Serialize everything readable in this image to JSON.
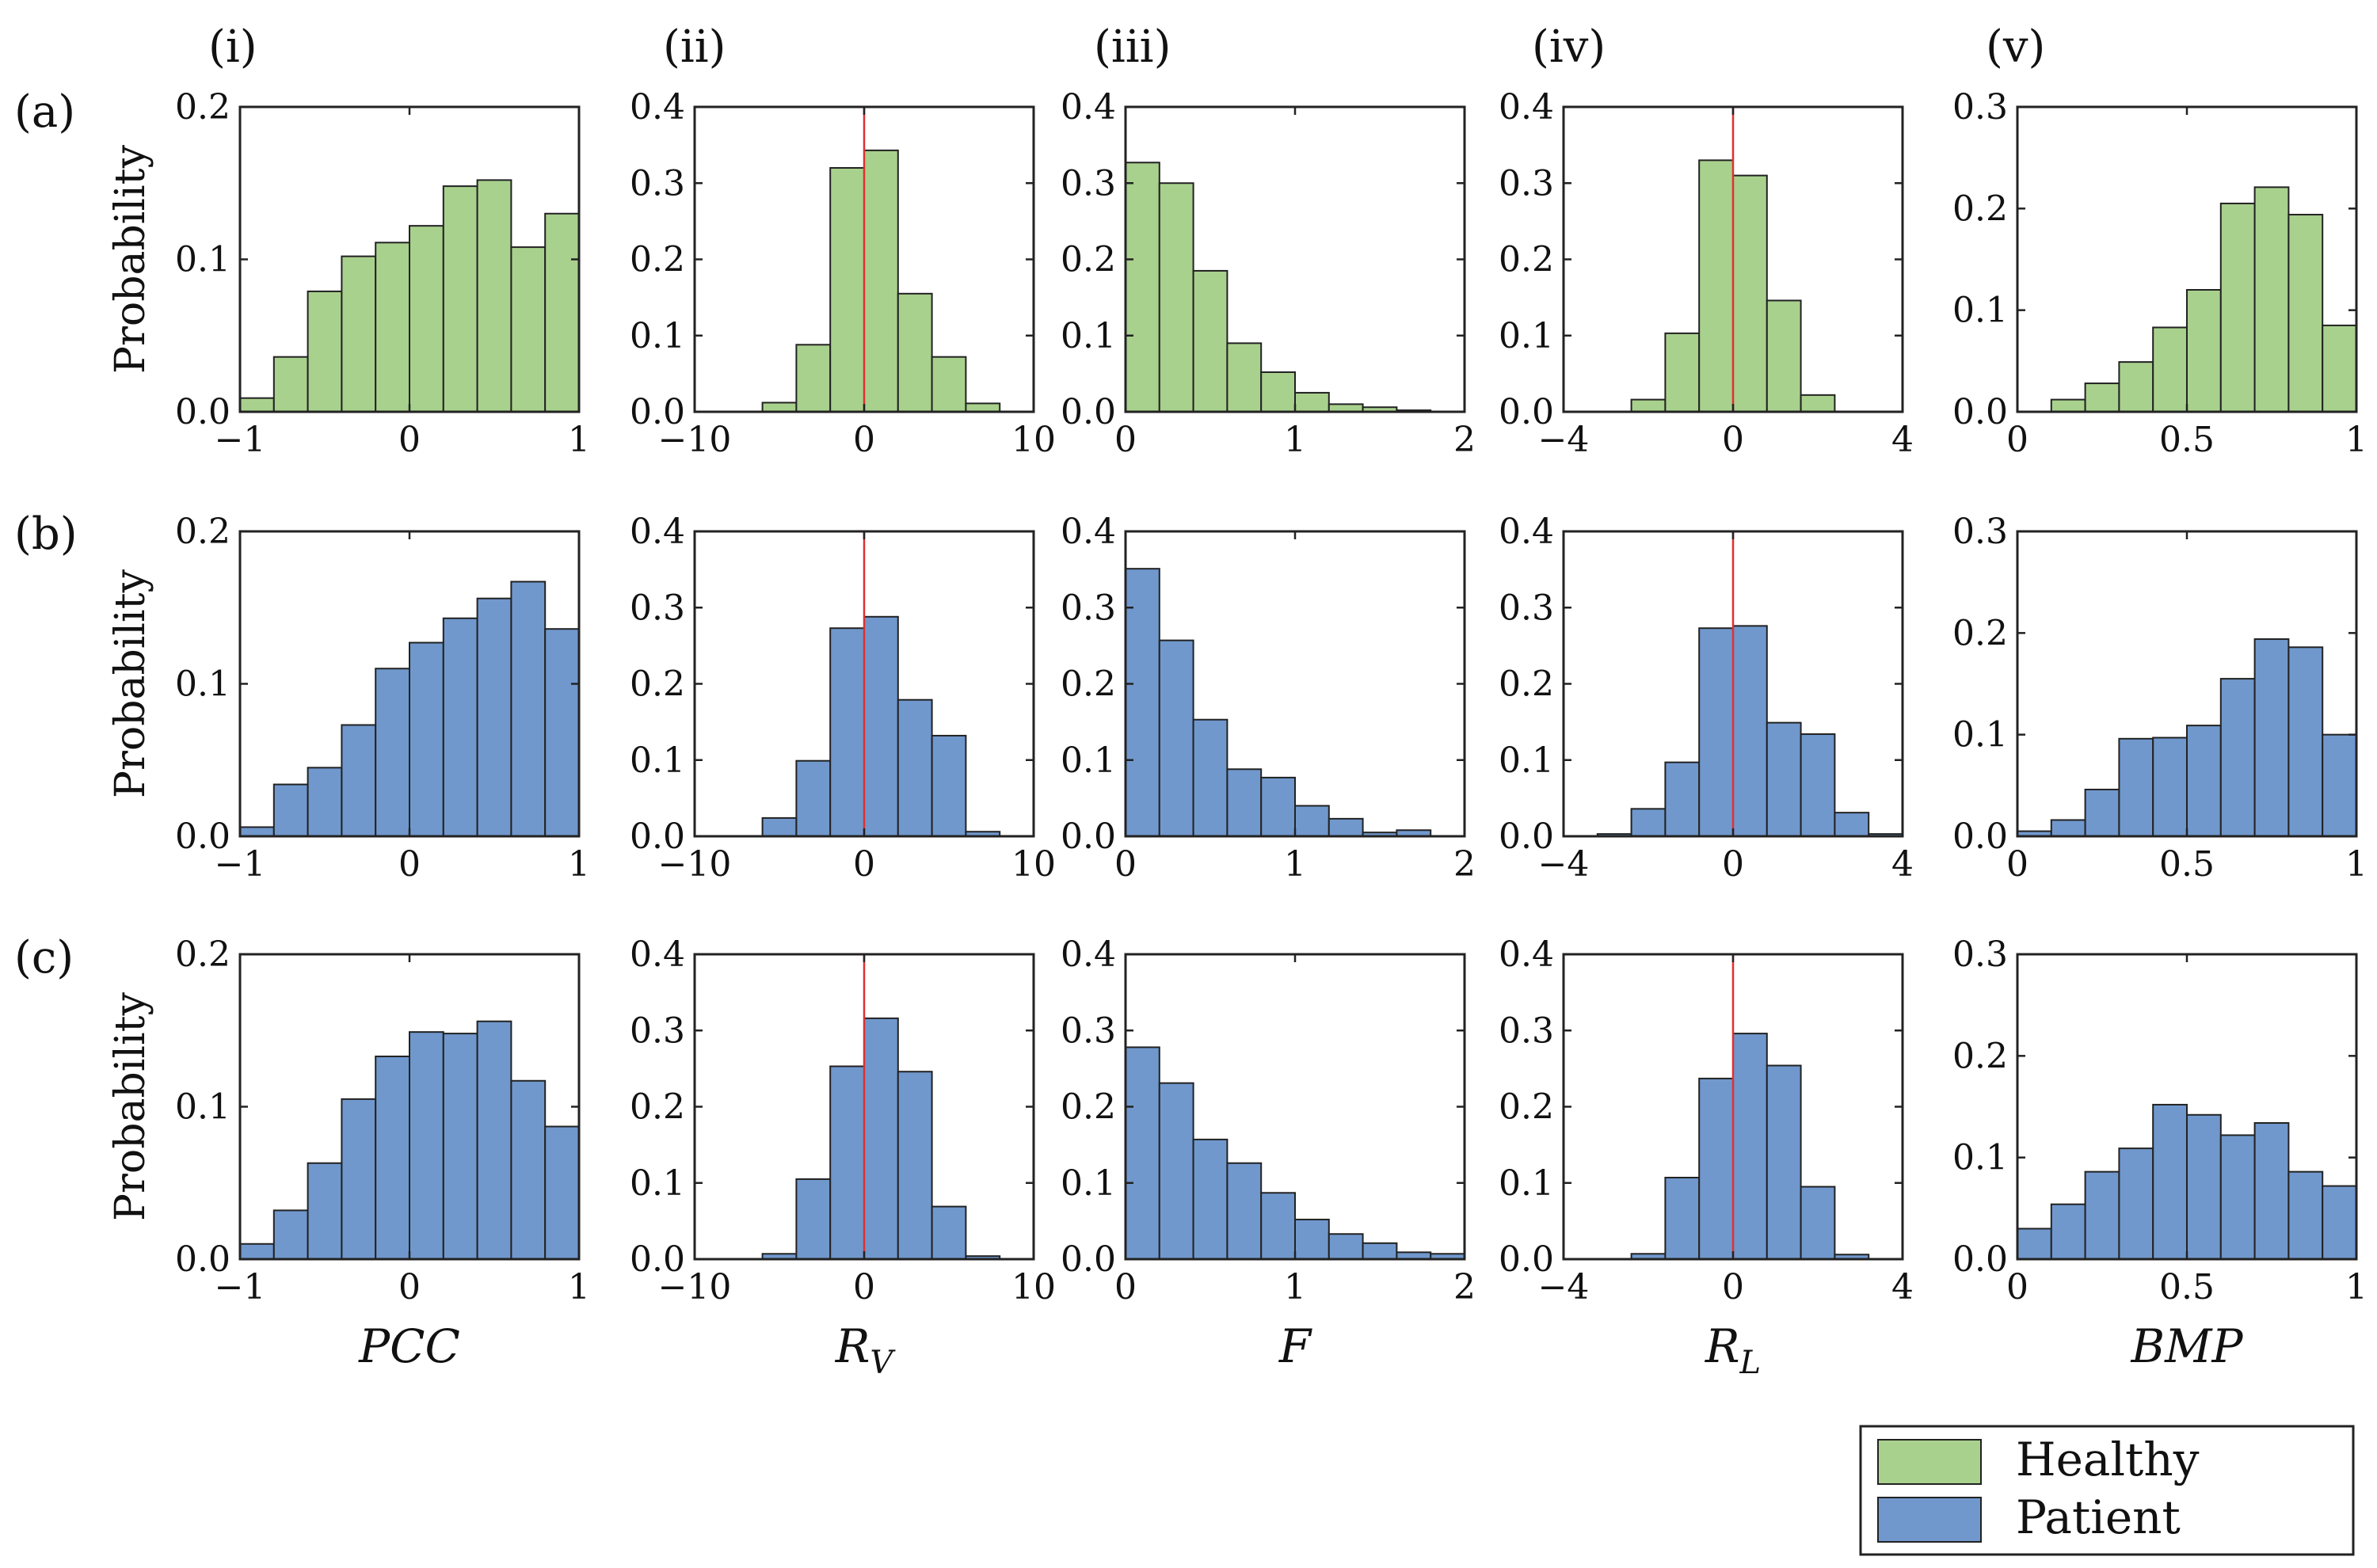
{
  "column_labels": [
    "(i)",
    "(ii)",
    "(iii)",
    "(iv)",
    "(v)"
  ],
  "row_labels": [
    "(a)",
    "(b)",
    "(c)"
  ],
  "ylabel": "Probability",
  "xlabels": [
    {
      "main": "PCC",
      "sub": ""
    },
    {
      "main": "R",
      "sub": "V"
    },
    {
      "main": "F",
      "sub": ""
    },
    {
      "main": "R",
      "sub": "L"
    },
    {
      "main": "BMP",
      "sub": ""
    }
  ],
  "legend": [
    {
      "label": "Healthy",
      "color": "#a9d18e"
    },
    {
      "label": "Patient",
      "color": "#7098cd"
    }
  ],
  "colors": {
    "healthy": "#a9d18e",
    "patient": "#7098cd",
    "edge": "#222222",
    "zero_line": "#e03030"
  },
  "chart_data": [
    {
      "type": "bar",
      "variable": "PCC",
      "xlim": [
        -1,
        1
      ],
      "ylim": [
        0,
        0.2
      ],
      "xticks": [
        "−1",
        "0",
        "1"
      ],
      "xtick_values": [
        -1,
        0,
        1
      ],
      "yticks": [
        "0.0",
        "0.1",
        "0.2"
      ],
      "ytick_values": [
        0,
        0.1,
        0.2
      ],
      "bin_edges": [
        -1,
        -0.8,
        -0.6,
        -0.4,
        -0.2,
        0,
        0.2,
        0.4,
        0.6,
        0.8,
        1
      ],
      "zero_line": false,
      "series": [
        {
          "name": "Healthy",
          "row": "(a)",
          "values": [
            0.009,
            0.036,
            0.079,
            0.102,
            0.111,
            0.122,
            0.148,
            0.152,
            0.108,
            0.13
          ]
        },
        {
          "name": "Patient",
          "row": "(b)",
          "values": [
            0.006,
            0.034,
            0.045,
            0.073,
            0.11,
            0.127,
            0.143,
            0.156,
            0.167,
            0.136
          ]
        },
        {
          "name": "Patient",
          "row": "(c)",
          "values": [
            0.01,
            0.032,
            0.063,
            0.105,
            0.133,
            0.149,
            0.148,
            0.156,
            0.117,
            0.087
          ]
        }
      ]
    },
    {
      "type": "bar",
      "variable": "R_V",
      "xlim": [
        -10,
        10
      ],
      "ylim": [
        0,
        0.4
      ],
      "xticks": [
        "−10",
        "0",
        "10"
      ],
      "xtick_values": [
        -10,
        0,
        10
      ],
      "yticks": [
        "0.0",
        "0.1",
        "0.2",
        "0.3",
        "0.4"
      ],
      "ytick_values": [
        0,
        0.1,
        0.2,
        0.3,
        0.4
      ],
      "bin_edges": [
        -10,
        -8,
        -6,
        -4,
        -2,
        0,
        2,
        4,
        6,
        8,
        10
      ],
      "zero_line": true,
      "series": [
        {
          "name": "Healthy",
          "row": "(a)",
          "values": [
            0,
            0,
            0.012,
            0.088,
            0.32,
            0.343,
            0.155,
            0.072,
            0.011,
            0
          ]
        },
        {
          "name": "Patient",
          "row": "(b)",
          "values": [
            0,
            0,
            0.024,
            0.099,
            0.273,
            0.288,
            0.179,
            0.132,
            0.006,
            0
          ]
        },
        {
          "name": "Patient",
          "row": "(c)",
          "values": [
            0,
            0,
            0.007,
            0.105,
            0.253,
            0.316,
            0.246,
            0.069,
            0.004,
            0
          ]
        }
      ]
    },
    {
      "type": "bar",
      "variable": "F",
      "xlim": [
        0,
        2
      ],
      "ylim": [
        0,
        0.4
      ],
      "xticks": [
        "0",
        "1",
        "2"
      ],
      "xtick_values": [
        0,
        1,
        2
      ],
      "yticks": [
        "0.0",
        "0.1",
        "0.2",
        "0.3",
        "0.4"
      ],
      "ytick_values": [
        0,
        0.1,
        0.2,
        0.3,
        0.4
      ],
      "bin_edges": [
        0,
        0.2,
        0.4,
        0.6,
        0.8,
        1.0,
        1.2,
        1.4,
        1.6,
        1.8,
        2.0
      ],
      "zero_line": false,
      "series": [
        {
          "name": "Healthy",
          "row": "(a)",
          "values": [
            0.327,
            0.3,
            0.185,
            0.09,
            0.052,
            0.025,
            0.01,
            0.006,
            0.002,
            0
          ]
        },
        {
          "name": "Patient",
          "row": "(b)",
          "values": [
            0.351,
            0.257,
            0.153,
            0.088,
            0.077,
            0.04,
            0.023,
            0.005,
            0.008,
            0
          ]
        },
        {
          "name": "Patient",
          "row": "(c)",
          "values": [
            0.278,
            0.231,
            0.157,
            0.126,
            0.087,
            0.052,
            0.033,
            0.021,
            0.009,
            0.007
          ]
        }
      ]
    },
    {
      "type": "bar",
      "variable": "R_L",
      "xlim": [
        -4,
        4
      ],
      "ylim": [
        0,
        0.4
      ],
      "xticks": [
        "−4",
        "0",
        "4"
      ],
      "xtick_values": [
        -4,
        0,
        4
      ],
      "yticks": [
        "0.0",
        "0.1",
        "0.2",
        "0.3",
        "0.4"
      ],
      "ytick_values": [
        0,
        0.1,
        0.2,
        0.3,
        0.4
      ],
      "bin_edges": [
        -4,
        -3.2,
        -2.4,
        -1.6,
        -0.8,
        0,
        0.8,
        1.6,
        2.4,
        3.2,
        4
      ],
      "zero_line": true,
      "series": [
        {
          "name": "Healthy",
          "row": "(a)",
          "values": [
            0,
            0,
            0.016,
            0.103,
            0.33,
            0.31,
            0.146,
            0.022,
            0,
            0
          ]
        },
        {
          "name": "Patient",
          "row": "(b)",
          "values": [
            0,
            0.003,
            0.036,
            0.097,
            0.273,
            0.276,
            0.149,
            0.134,
            0.031,
            0.003
          ]
        },
        {
          "name": "Patient",
          "row": "(c)",
          "values": [
            0,
            0,
            0.007,
            0.107,
            0.237,
            0.296,
            0.254,
            0.095,
            0.006,
            0
          ]
        }
      ]
    },
    {
      "type": "bar",
      "variable": "BMP",
      "xlim": [
        0,
        1
      ],
      "ylim": [
        0,
        0.3
      ],
      "xticks": [
        "0",
        "0.5",
        "1"
      ],
      "xtick_values": [
        0,
        0.5,
        1
      ],
      "yticks": [
        "0.0",
        "0.1",
        "0.2",
        "0.3"
      ],
      "ytick_values": [
        0,
        0.1,
        0.2,
        0.3
      ],
      "bin_edges": [
        0,
        0.1,
        0.2,
        0.3,
        0.4,
        0.5,
        0.6,
        0.7,
        0.8,
        0.9,
        1.0
      ],
      "zero_line": false,
      "series": [
        {
          "name": "Healthy",
          "row": "(a)",
          "values": [
            0,
            0.012,
            0.028,
            0.049,
            0.083,
            0.12,
            0.205,
            0.221,
            0.194,
            0.085
          ]
        },
        {
          "name": "Patient",
          "row": "(b)",
          "values": [
            0.005,
            0.016,
            0.046,
            0.096,
            0.097,
            0.109,
            0.155,
            0.194,
            0.186,
            0.1
          ]
        },
        {
          "name": "Patient",
          "row": "(c)",
          "values": [
            0.03,
            0.054,
            0.086,
            0.109,
            0.152,
            0.142,
            0.122,
            0.134,
            0.086,
            0.072
          ]
        }
      ]
    }
  ]
}
